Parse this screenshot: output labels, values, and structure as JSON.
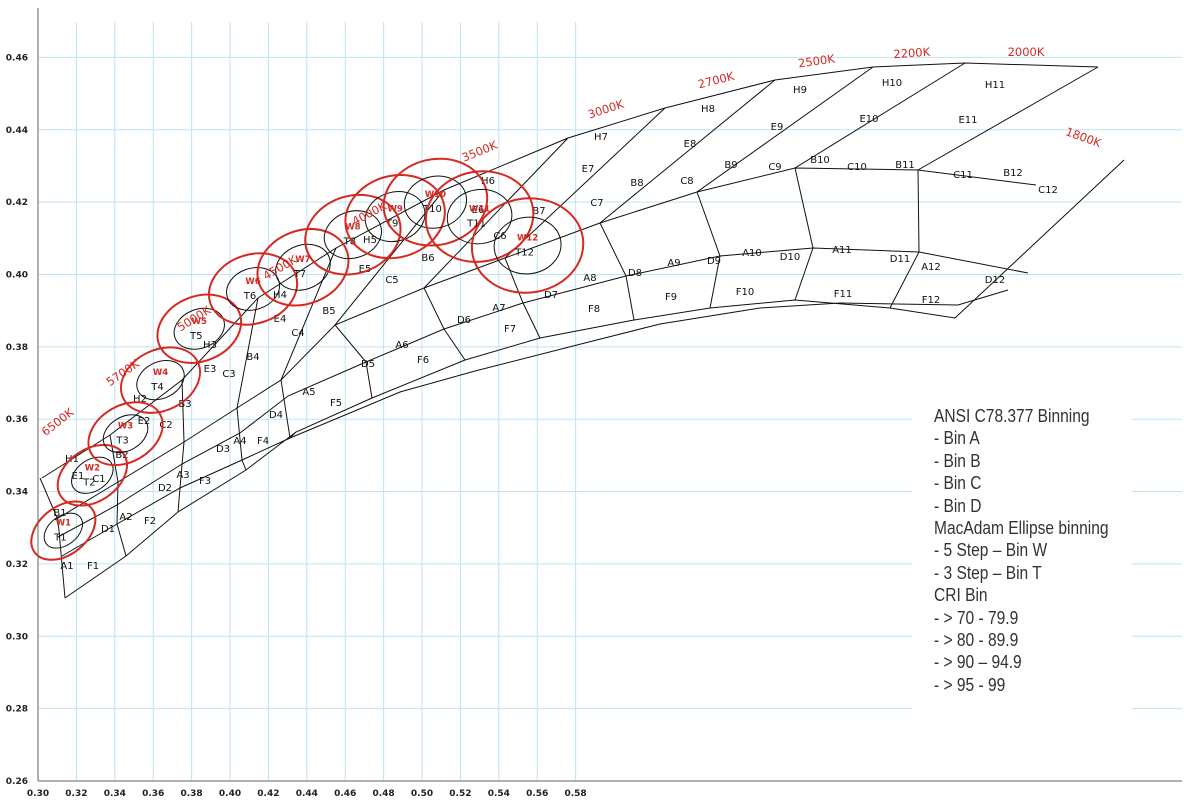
{
  "chart_data": {
    "type": "scatter",
    "title": "",
    "xlabel": "",
    "ylabel": "",
    "xlim": [
      0.3,
      0.585
    ],
    "ylim": [
      0.26,
      0.475
    ],
    "x_ticks": [
      "0.30",
      "0.32",
      "0.34",
      "0.36",
      "0.38",
      "0.40",
      "0.42",
      "0.44",
      "0.46",
      "0.48",
      "0.50",
      "0.52",
      "0.54",
      "0.56",
      "0.58"
    ],
    "y_ticks": [
      "0.26",
      "0.28",
      "0.30",
      "0.32",
      "0.34",
      "0.36",
      "0.38",
      "0.40",
      "0.42",
      "0.44",
      "0.46"
    ],
    "grid": true,
    "cct_labels": [
      "6500K",
      "5700K",
      "5000K",
      "4500K",
      "4000K",
      "3500K",
      "3000K",
      "2700K",
      "2500K",
      "2200K",
      "2000K",
      "1800K"
    ],
    "bin_rows": [
      "H",
      "E",
      "B",
      "C",
      "A",
      "D",
      "F"
    ],
    "bin_columns": [
      "1",
      "2",
      "3",
      "4",
      "5",
      "6",
      "7",
      "8",
      "9",
      "10",
      "11",
      "12"
    ],
    "ellipses": [
      {
        "w": "W1",
        "t": "T1",
        "x": 0.3132,
        "y": 0.3292
      },
      {
        "w": "W2",
        "t": "T2",
        "x": 0.3283,
        "y": 0.3445
      },
      {
        "w": "W3",
        "t": "T3",
        "x": 0.3456,
        "y": 0.356
      },
      {
        "w": "W4",
        "t": "T4",
        "x": 0.3638,
        "y": 0.3708
      },
      {
        "w": "W5",
        "t": "T5",
        "x": 0.384,
        "y": 0.385
      },
      {
        "w": "W6",
        "t": "T6",
        "x": 0.412,
        "y": 0.396
      },
      {
        "w": "W7",
        "t": "T7",
        "x": 0.438,
        "y": 0.402
      },
      {
        "w": "W8",
        "t": "T8",
        "x": 0.464,
        "y": 0.411
      },
      {
        "w": "W9",
        "t": "T9",
        "x": 0.486,
        "y": 0.416
      },
      {
        "w": "W10",
        "t": "T10",
        "x": 0.507,
        "y": 0.42
      },
      {
        "w": "W11",
        "t": "T11",
        "x": 0.53,
        "y": 0.416
      },
      {
        "w": "W12",
        "t": "T12",
        "x": 0.555,
        "y": 0.408
      }
    ]
  },
  "legend": {
    "lines": [
      "ANSI C78.377 Binning",
      "- Bin A",
      "- Bin B",
      "- Bin C",
      "- Bin D",
      "MacAdam Ellipse binning",
      "- 5 Step – Bin W",
      "- 3 Step – Bin T",
      "CRI Bin",
      "- > 70 - 79.9",
      "- > 80 - 89.9",
      "- > 90 – 94.9",
      "- > 95 - 99"
    ]
  },
  "colors": {
    "grid": "#bfe3f5",
    "line": "#111111",
    "ellipse_red": "#d42a22",
    "cct_text": "#d42a22"
  }
}
